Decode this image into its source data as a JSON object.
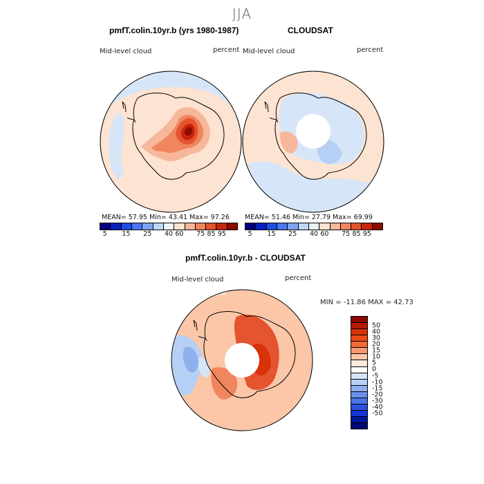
{
  "season": "JJA",
  "panels": {
    "model": {
      "title": "pmfT.colin.10yr.b (yrs 1980-1987)",
      "left_label": "Mid-level cloud",
      "right_label": "percent",
      "stats": "MEAN=  57.95   Min=  43.41   Max=  97.26"
    },
    "obs": {
      "title": "CLOUDSAT",
      "left_label": "Mid-level cloud",
      "right_label": "percent",
      "stats": "MEAN=  51.46   Min=  27.79   Max=  69.99"
    },
    "diff": {
      "title": "pmfT.colin.10yr.b - CLOUDSAT",
      "left_label": "Mid-level cloud",
      "right_label": "percent",
      "minmax": "MIN = -11.86 MAX =  42.73"
    }
  },
  "abs_colorbar": {
    "colors": [
      "#00007f",
      "#0a1fbd",
      "#1f4ee6",
      "#4a77f0",
      "#7ea3f2",
      "#bdd8f6",
      "#ebf2fb",
      "#fde3d2",
      "#f7b79a",
      "#f0865e",
      "#e4542e",
      "#c8250e",
      "#8c0a00"
    ],
    "ticks": [
      "5",
      "15",
      "25",
      "40",
      "60",
      "75",
      "85",
      "95"
    ]
  },
  "diff_colorbar": {
    "colors": [
      "#8c0a00",
      "#b81a05",
      "#d8320a",
      "#ee4a18",
      "#f46a36",
      "#f79a70",
      "#fbc7a8",
      "#fde8da",
      "#ffffff",
      "#d6e6f8",
      "#b6cff4",
      "#8eb0ee",
      "#6a90ea",
      "#4c74e6",
      "#2d52e0",
      "#1434d6",
      "#00189e",
      "#000873"
    ],
    "ticks": [
      "50",
      "40",
      "30",
      "20",
      "15",
      "10",
      "5",
      "0",
      "-5",
      "-10",
      "-15",
      "-20",
      "-30",
      "-40",
      "-50"
    ]
  },
  "map_colors": {
    "ocean_light": "#d6e6f8",
    "land_light": "#fde3d2",
    "mid_red": "#f7b79a",
    "strong_red": "#e4542e",
    "dark_red": "#8c0a00",
    "missing": "#ffffff"
  }
}
